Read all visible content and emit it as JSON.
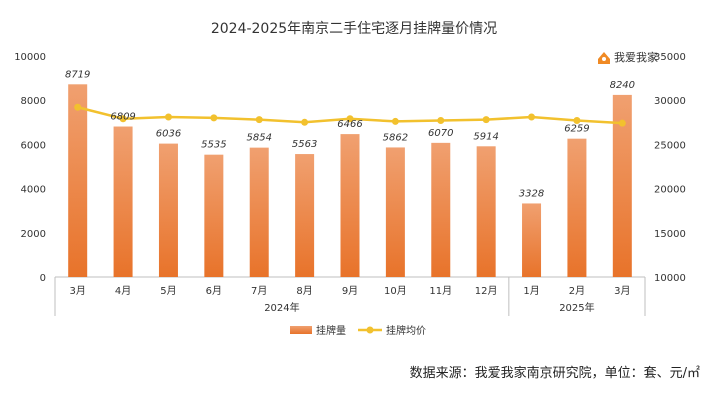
{
  "chart_data": {
    "type": "bar",
    "title": "2024-2025年南京二手住宅逐月挂牌量价情况",
    "categories": [
      "3月",
      "4月",
      "5月",
      "6月",
      "7月",
      "8月",
      "9月",
      "10月",
      "11月",
      "12月",
      "1月",
      "2月",
      "3月"
    ],
    "groups": [
      {
        "label": "2024年",
        "start": 0,
        "end": 9
      },
      {
        "label": "2025年",
        "start": 10,
        "end": 12
      }
    ],
    "series": [
      {
        "name": "挂牌量",
        "type": "bar",
        "axis": "left",
        "color": "#ED7D31",
        "values": [
          8719,
          6809,
          6036,
          5535,
          5854,
          5563,
          6466,
          5862,
          6070,
          5914,
          3328,
          6259,
          8240
        ]
      },
      {
        "name": "挂牌均价",
        "type": "line",
        "axis": "right",
        "color": "#F2C12E",
        "values": [
          29200,
          27900,
          28100,
          28000,
          27800,
          27500,
          27900,
          27600,
          27700,
          27800,
          28100,
          27700,
          27400
        ]
      }
    ],
    "y_left": {
      "min": 0,
      "max": 10000,
      "ticks": [
        0,
        2000,
        4000,
        6000,
        8000,
        10000
      ]
    },
    "y_right": {
      "min": 10000,
      "max": 35000,
      "ticks": [
        10000,
        15000,
        20000,
        25000,
        30000,
        35000
      ]
    },
    "legend_position": "bottom",
    "grid": false
  },
  "logo": {
    "text": "我爱我家"
  },
  "source_note": "数据来源：我爱我家南京研究院，单位：套、元/㎡"
}
